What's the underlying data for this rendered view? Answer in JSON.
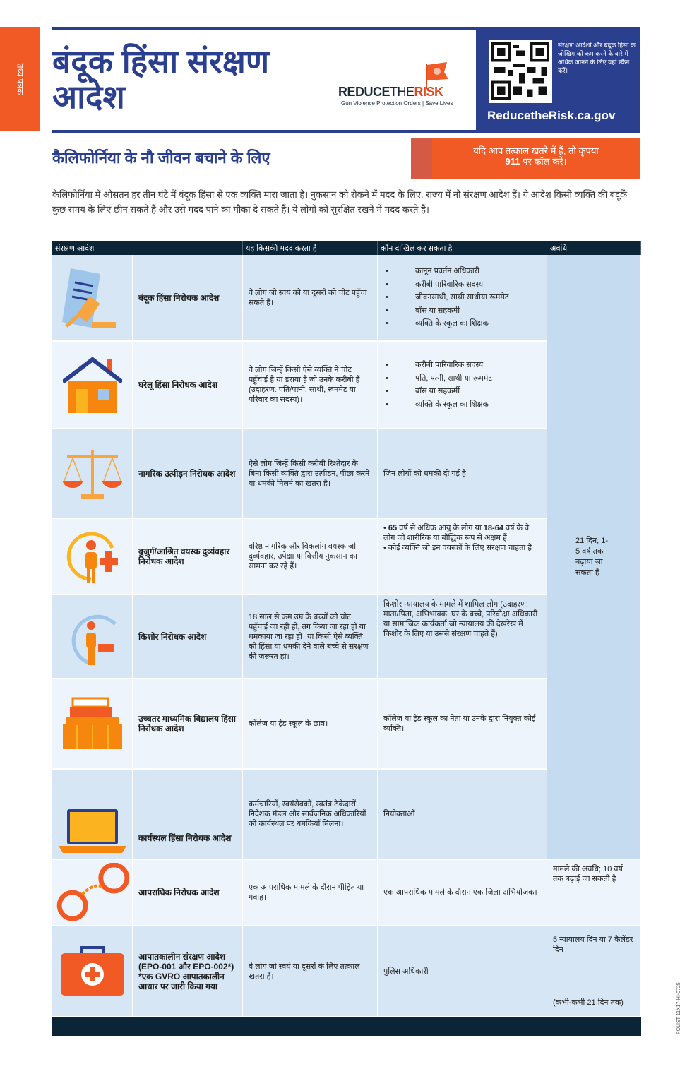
{
  "side_label": "तथ्य पत्रक",
  "title": "बंदूक हिंसा संरक्षण आदेश",
  "logo": {
    "main_dark": "REDUCE",
    "main_light": "THE",
    "main_red": "RISK",
    "tagline": "Gun Violence Protection Orders | Save Lives"
  },
  "qr_text": "संरक्षण आदेशों और बंदूक हिंसा के जोखिम को कम करने के बारे में अधिक जानने के लिए यहां स्कैन करें।",
  "url": "ReducetheRisk.ca.gov",
  "subtitle": "कैलिफोर्निया के नौ जीवन बचाने के लिए",
  "alert": {
    "line1": "यदि आप तत्काल खतरे में हैं, तो कृपया",
    "line2_bold": "911",
    "line2": " पर कॉल करें।"
  },
  "intro": "कैलिफोर्निया में औसतन हर तीन घंटे में बंदूक हिंसा से एक व्यक्ति मारा जाता है। नुकसान को रोकने में मदद के लिए, राज्य में नौ संरक्षण आदेश हैं। ये आदेश किसी व्यक्ति की बंदूकें कुछ समय के लिए छीन सकते हैं और उसे मदद पाने का मौका दे सकते हैं। ये लोगों को सुरक्षित रखने में मदद करते हैं।",
  "table": {
    "headers": [
      "संरक्षण आदेश",
      "यह किसकी मदद करता है",
      "कौन दाखिल कर सकता है",
      "अवधि"
    ],
    "rows": [
      {
        "icon": "gavel-document-icon",
        "name": "बंदूक हिंसा निरोधक आदेश",
        "helps": "वे लोग जो स्वयं को या दूसरों को चोट पहुँचा सकते हैं।",
        "filers": [
          "कानून प्रवर्तन अधिकारी",
          "करीबी पारिवारिक सदस्य",
          "जीवनसाथी, साथी साथीया रूममेट",
          "बॉस या सहकर्मी",
          "व्यक्ति के स्कूल का शिक्षक"
        ]
      },
      {
        "icon": "house-icon",
        "name": "घरेलू हिंसा निरोधक आदेश",
        "helps": "वे लोग जिन्हें किसी ऐसे व्यक्ति ने चोट पहुँचाई है या डराया है जो उनके करीबी हैं (उदाहरण: पति/पत्नी, साथी, रूममेट या परिवार का सदस्य)।",
        "filers": [
          "करीबी पारिवारिक सदस्य",
          "पति, पत्नी, साथी या रूममेट",
          "बॉस या सहकर्मी",
          "व्यक्ति के स्कूल का शिक्षक"
        ]
      },
      {
        "icon": "scales-icon",
        "name": "नागरिक उत्पीड़न निरोधक आदेश",
        "helps": "ऐसे लोग जिन्हें किसी करीबी रिश्तेदार के बिना किसी व्यक्ति द्वारा उत्पीड़न, पीछा करने या धमकी मिलने का खतरा है।",
        "filer_text": "जिन लोगों को धमकी दी गई है"
      },
      {
        "icon": "elder-person-icon",
        "name": "बुजुर्ग/आश्रित वयस्क दुर्व्यवहार निरोधक आदेश",
        "helps": "वरिष्ठ नागरिक और विकलांग वयस्क जो दुर्व्यवहार, उपेक्षा या वित्तीय नुकसान का सामना कर रहे हैं।",
        "filer_b1": "65",
        "filer_t1": " वर्ष से अधिक आयु के लोग या ",
        "filer_b2": "18-64",
        "filer_t2": " वर्ष के वे लोग जो शारीरिक या बौद्धिक रूप से अक्षम हैं",
        "filer_t3": "कोई व्यक्ति जो इन वयस्कों के लिए संरक्षण चाहता है"
      },
      {
        "icon": "juvenile-person-icon",
        "name": "किशोर निरोधक आदेश",
        "helps": "18 साल से कम उम्र के बच्चों को चोट पहुँचाई जा रही हो, तंग किया जा रहा हो या धमकाया जा रहा हो। या किसी ऐसे व्यक्ति को हिंसा या धमकी देने वाले बच्चे से संरक्षण की ज़रूरत हो।",
        "filer_text": "किशोर न्यायालय के मामले में शामिल लोग (उदाहरण: माता/पिता, अभिभावक, घर के बच्चे, परिवीक्षा अधिकारी या सामाजिक कार्यकर्ता जो न्यायालय की देखरेख में किशोर के लिए या उससे संरक्षण चाहते हैं)"
      },
      {
        "icon": "books-icon",
        "name": "उच्चतर माध्यमिक विद्यालय हिंसा निरोधक आदेश",
        "helps": "कॉलेज या ट्रेड स्कूल के छात्र।",
        "filer_text": "कॉलेज या ट्रेड स्कूल का नेता या उनके द्वारा नियुक्त कोई व्यक्ति।"
      },
      {
        "icon": "laptop-icon",
        "name": "कार्यस्थल हिंसा निरोधक आदेश",
        "helps": "कर्मचारियों, स्वयंसेवकों, स्वतंत्र ठेकेदारों, निदेशक मंडल और सार्वजनिक अधिकारियों को कार्यस्थल पर धमकियाँ मिलना।",
        "filer_text": "नियोक्ताओं"
      },
      {
        "icon": "handcuffs-icon",
        "name": "आपराधिक निरोधक आदेश",
        "helps": "एक आपराधिक मामले के दौरान पीड़ित या गवाह।",
        "filer_text": "एक आपराधिक मामले के दौरान एक जिला अभियोजक।",
        "duration": "मामले की अवधि; 10 वर्ष तक बढ़ाई जा सकती है"
      },
      {
        "icon": "first-aid-kit-icon",
        "name": "आपातकालीन संरक्षण आदेश (EPO-001 और EPO-002*) *एक GVRO आपातकालीन आधार पर जारी किया गया",
        "helps": "वे लोग जो स्वयं या दूसरों के लिए तत्काल खतरा हैं।",
        "filer_text": "पुलिस अधिकारी",
        "duration": "5 न्यायालय दिन या 7 कैलेंडर दिन",
        "duration_note": "(कभी-कभी 21 दिन तक)"
      }
    ],
    "shared_duration": "21 दिन; 1-5 वर्ष तक बढ़ाया जा सकता है"
  },
  "form_code": "POLIST 11X17-HI-0725",
  "colors": {
    "navy": "#2b3f8f",
    "orange": "#f15a24",
    "dark": "#0b2436",
    "light_blue": "#d6e6f4"
  }
}
